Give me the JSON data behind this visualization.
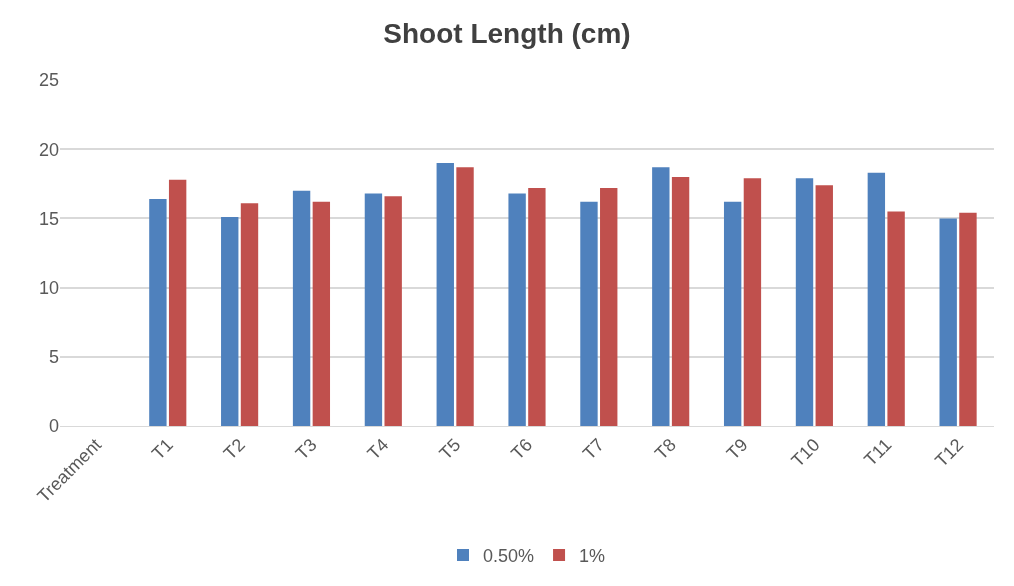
{
  "chart_data": {
    "type": "bar",
    "title": "Shoot Length (cm)",
    "categories": [
      "Treatment",
      "T1",
      "T2",
      "T3",
      "T4",
      "T5",
      "T6",
      "T7",
      "T8",
      "T9",
      "T10",
      "T11",
      "T12"
    ],
    "series": [
      {
        "name": "0.50%",
        "color": "#4f81bd",
        "values": [
          null,
          16.4,
          15.1,
          17.0,
          16.8,
          19.0,
          16.8,
          16.2,
          18.7,
          16.2,
          17.9,
          18.3,
          15.0
        ]
      },
      {
        "name": "1%",
        "color": "#c0504d",
        "values": [
          null,
          17.8,
          16.1,
          16.2,
          16.6,
          18.7,
          17.2,
          17.2,
          18.0,
          17.9,
          17.4,
          15.5,
          15.4
        ]
      }
    ],
    "ylim": [
      0,
      25
    ],
    "yticks": [
      0,
      5,
      10,
      15,
      20,
      25
    ],
    "grid": "y",
    "legend": "bottom"
  }
}
